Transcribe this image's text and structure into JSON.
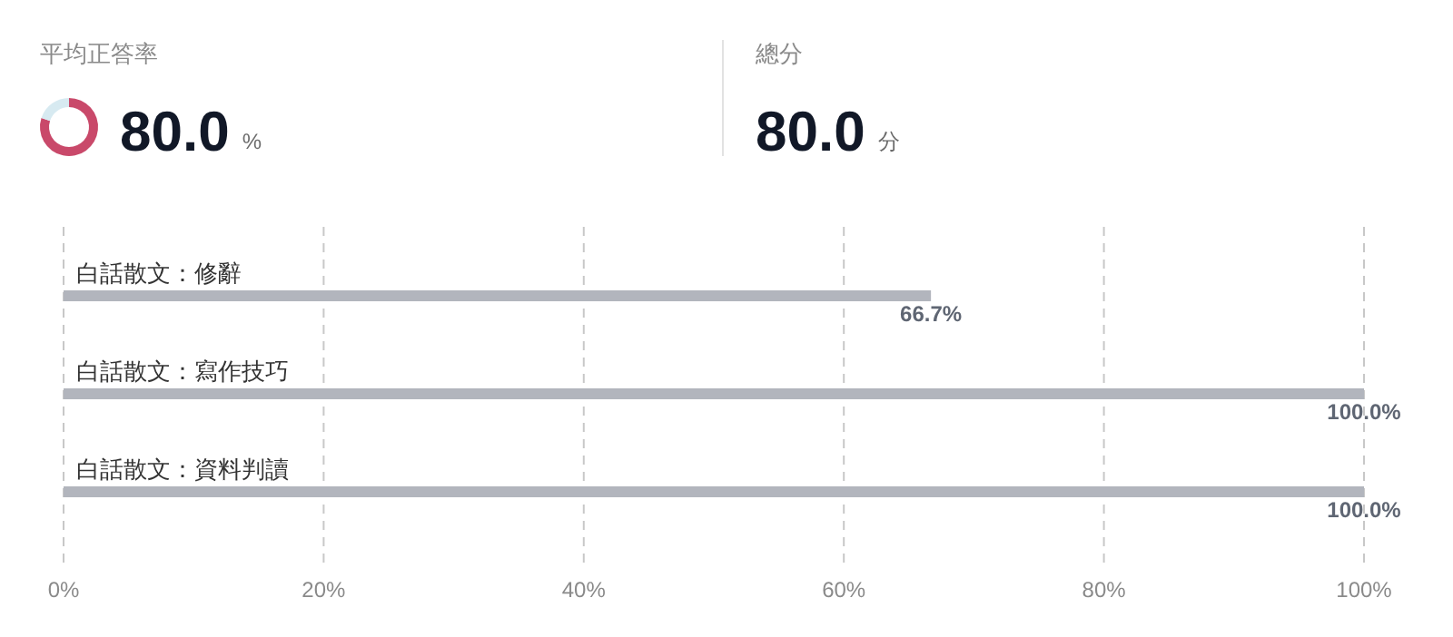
{
  "chart_data": [
    {
      "type": "other",
      "title": "平均正答率",
      "annotations": [
        "80.0",
        "%"
      ]
    },
    {
      "type": "donut",
      "categories": [
        null,
        null
      ],
      "values": [
        80,
        20
      ],
      "colors": [
        "#c9496a",
        "#d7eaf1"
      ]
    },
    {
      "type": "other",
      "title": "總分",
      "annotations": [
        "80.0",
        "分"
      ]
    },
    {
      "type": "bar",
      "orientation": "horizontal",
      "categories": [
        "白話散文：修辭",
        "白話散文：寫作技巧",
        "白話散文：資料判讀"
      ],
      "values": [
        66.7,
        100,
        100
      ],
      "color": "#b2b5bd",
      "value_labels": [
        "66.7%",
        "100.0%",
        "100.0%"
      ],
      "xlim": [
        0,
        100
      ],
      "xticks": [
        {
          "value": 0,
          "label": "0%"
        },
        {
          "value": 20,
          "label": "20%"
        },
        {
          "value": 40,
          "label": "40%"
        },
        {
          "value": 60,
          "label": "60%"
        },
        {
          "value": 80,
          "label": "80%"
        },
        {
          "value": 100,
          "label": "100%"
        }
      ],
      "grid": "x"
    }
  ]
}
